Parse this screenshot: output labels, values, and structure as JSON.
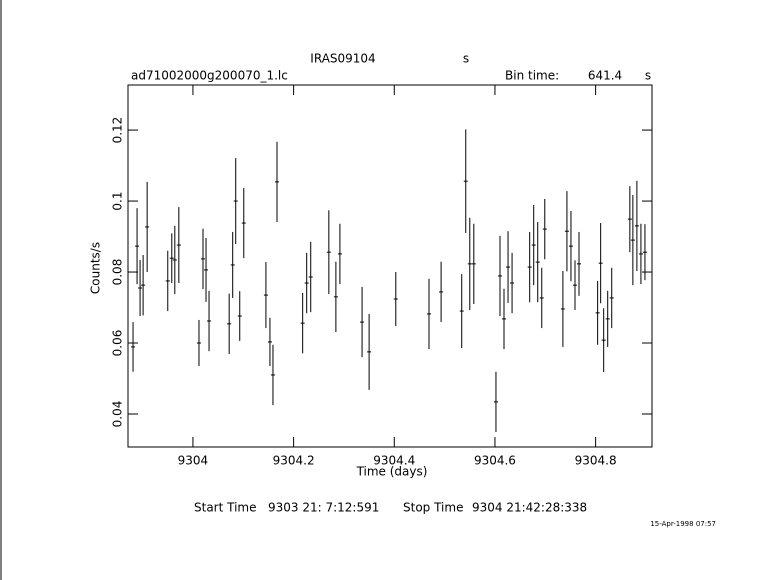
{
  "chart_data": {
    "type": "scatter",
    "title": "IRAS09104",
    "title_unit": "s",
    "subtitle": "ad71002000g200070_1.lc",
    "bin_time_label": "Bin time:",
    "bin_time": 641.4,
    "bin_time_unit": "s",
    "x_label": "Time (days)",
    "y_label": "Counts/s",
    "start_label": "Start Time",
    "start": "9303 21: 7:12:591",
    "stop_label": "Stop Time",
    "stop": "9304 21:42:28:338",
    "date": "15-Apr-1998 07:57",
    "color": "#000000",
    "xlim": [
      9303.871,
      9304.912
    ],
    "ylim": [
      0.0307,
      0.1327
    ],
    "xticks": [
      9304,
      9304.2,
      9304.4,
      9304.6,
      9304.8
    ],
    "yticks": [
      0.04,
      0.06,
      0.08,
      0.1,
      0.12
    ],
    "x": [
      9303.881,
      9303.889,
      9303.895,
      9303.901,
      9303.909,
      9303.95,
      9303.958,
      9303.964,
      9303.972,
      9304.012,
      9304.02,
      9304.026,
      9304.032,
      9304.072,
      9304.079,
      9304.085,
      9304.093,
      9304.101,
      9304.145,
      9304.153,
      9304.159,
      9304.167,
      9304.218,
      9304.226,
      9304.234,
      9304.27,
      9304.284,
      9304.292,
      9304.336,
      9304.35,
      9304.403,
      9304.469,
      9304.493,
      9304.534,
      9304.542,
      9304.55,
      9304.558,
      9304.602,
      9304.61,
      9304.618,
      9304.626,
      9304.634,
      9304.669,
      9304.677,
      9304.685,
      9304.693,
      9304.699,
      9304.735,
      9304.743,
      9304.751,
      9304.759,
      9304.767,
      9304.804,
      9304.81,
      9304.816,
      9304.824,
      9304.832,
      9304.868,
      9304.874,
      9304.882,
      9304.89,
      9304.898
    ],
    "values": [
      0.0589,
      0.0873,
      0.0755,
      0.0763,
      0.0927,
      0.0775,
      0.0839,
      0.0834,
      0.0876,
      0.06,
      0.0837,
      0.0806,
      0.0662,
      0.0654,
      0.082,
      0.1,
      0.0676,
      0.0938,
      0.0735,
      0.0603,
      0.051,
      0.1054,
      0.0656,
      0.0769,
      0.0786,
      0.0856,
      0.073,
      0.0851,
      0.0659,
      0.0575,
      0.0724,
      0.0682,
      0.0744,
      0.069,
      0.1056,
      0.0823,
      0.0823,
      0.0434,
      0.0789,
      0.0668,
      0.0814,
      0.0769,
      0.0814,
      0.0876,
      0.0828,
      0.0727,
      0.0921,
      0.0696,
      0.0915,
      0.0873,
      0.0763,
      0.0823,
      0.0685,
      0.0825,
      0.0608,
      0.0668,
      0.0727,
      0.0949,
      0.089,
      0.093,
      0.0851,
      0.0856
    ],
    "errors": [
      0.007,
      0.0107,
      0.0079,
      0.0085,
      0.0127,
      0.0085,
      0.007,
      0.0096,
      0.0107,
      0.0065,
      0.0085,
      0.009,
      0.0085,
      0.0085,
      0.0093,
      0.0121,
      0.007,
      0.0099,
      0.0093,
      0.0068,
      0.0085,
      0.0113,
      0.0085,
      0.0085,
      0.0099,
      0.0118,
      0.0099,
      0.0085,
      0.0099,
      0.0107,
      0.0076,
      0.0099,
      0.0085,
      0.0104,
      0.0146,
      0.013,
      0.0113,
      0.0085,
      0.0113,
      0.0085,
      0.0101,
      0.0085,
      0.0099,
      0.0113,
      0.0113,
      0.0085,
      0.0085,
      0.0107,
      0.0113,
      0.0099,
      0.007,
      0.009,
      0.009,
      0.0113,
      0.009,
      0.0079,
      0.0085,
      0.0093,
      0.0127,
      0.0127,
      0.0085,
      0.0079
    ]
  }
}
